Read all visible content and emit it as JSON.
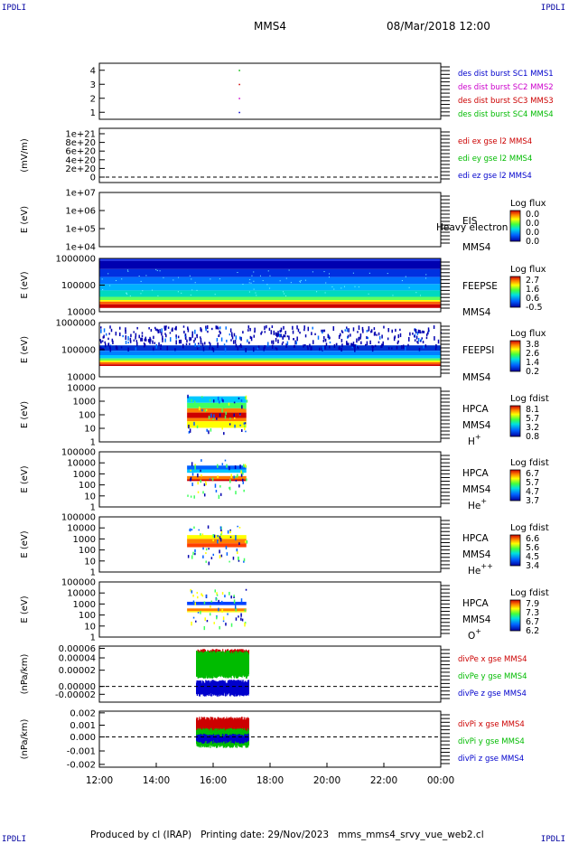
{
  "corner_label": "IPDLI",
  "header": {
    "spacecraft": "MMS4",
    "datetime": "08/Mar/2018 12:00"
  },
  "footer": {
    "produced_by": "Produced by cl (IRAP)",
    "printing_date": "Printing date: 29/Nov/2023",
    "script_name": "mms_mms4_srvy_vue_web2.cl"
  },
  "chart_data": [
    {
      "id": "burst",
      "type": "scatter",
      "title": "",
      "ylabel": "",
      "ylim": [
        0.5,
        4.5
      ],
      "yticks": [
        "1",
        "2",
        "3",
        "4"
      ],
      "legend": [
        {
          "text": "des dist burst SC1 MMS1",
          "color": "#0000cc"
        },
        {
          "text": "des dist burst SC2 MMS2",
          "color": "#cc00cc"
        },
        {
          "text": "des dist burst SC3 MMS3",
          "color": "#cc0000"
        },
        {
          "text": "des dist burst SC4 MMS4",
          "color": "#00bb00"
        }
      ],
      "series": [
        {
          "name": "des dist burst SC1 MMS1",
          "x": [
            "16:55"
          ],
          "y": [
            1
          ]
        },
        {
          "name": "des dist burst SC2 MMS2",
          "x": [
            "16:55"
          ],
          "y": [
            2
          ]
        },
        {
          "name": "des dist burst SC3 MMS3",
          "x": [
            "16:55"
          ],
          "y": [
            3
          ]
        },
        {
          "name": "des dist burst SC4 MMS4",
          "x": [
            "16:55"
          ],
          "y": [
            4
          ]
        }
      ]
    },
    {
      "id": "edi",
      "type": "line",
      "ylabel": "(mV/m)",
      "yticks": [
        "0",
        "2e+20",
        "4e+20",
        "6e+20",
        "8e+20",
        "1e+21"
      ],
      "zero_line": true,
      "legend": [
        {
          "text": "edi ex gse l2 MMS4",
          "color": "#cc0000"
        },
        {
          "text": "edi ey gse l2 MMS4",
          "color": "#00bb00"
        },
        {
          "text": "edi ez gse l2 MMS4",
          "color": "#0000cc"
        }
      ]
    },
    {
      "id": "eis",
      "type": "heatmap",
      "ylabel": "E (eV)",
      "yticks": [
        "1e+04",
        "1e+05",
        "1e+06",
        "1e+07"
      ],
      "instrument": "EIS",
      "sc": "MMS4",
      "overlay": "Heavy electron to",
      "cbar_title": "Log flux",
      "cbar_ticks": [
        "0.0",
        "0.0",
        "0.0",
        "0.0"
      ]
    },
    {
      "id": "feepse",
      "type": "heatmap",
      "ylabel": "E (eV)",
      "yticks": [
        "10000",
        "100000",
        "1000000"
      ],
      "instrument": "FEEPSE",
      "sc": "MMS4",
      "cbar_title": "Log flux",
      "cbar_ticks": [
        "2.7",
        "1.6",
        "0.6",
        "-0.5"
      ],
      "x_range": [
        "12:00",
        "00:00"
      ]
    },
    {
      "id": "feepsi",
      "type": "heatmap",
      "ylabel": "E (eV)",
      "yticks": [
        "10000",
        "100000",
        "1000000"
      ],
      "instrument": "FEEPSI",
      "sc": "MMS4",
      "cbar_title": "Log flux",
      "cbar_ticks": [
        "3.8",
        "2.6",
        "1.4",
        "0.2"
      ],
      "x_range": [
        "12:00",
        "00:00"
      ]
    },
    {
      "id": "hpca_h",
      "type": "heatmap",
      "ylabel": "E (eV)",
      "yticks": [
        "1",
        "10",
        "100",
        "1000",
        "10000"
      ],
      "instrument": "HPCA",
      "sc": "MMS4",
      "species": "H",
      "charge": "+",
      "cbar_title": "Log fdist",
      "cbar_ticks": [
        "8.1",
        "5.7",
        "3.2",
        "0.8"
      ],
      "x_range": [
        "15:05",
        "17:10"
      ]
    },
    {
      "id": "hpca_he",
      "type": "heatmap",
      "ylabel": "E (eV)",
      "yticks": [
        "1",
        "10",
        "100",
        "1000",
        "10000",
        "100000"
      ],
      "instrument": "HPCA",
      "sc": "MMS4",
      "species": "He",
      "charge": "+",
      "cbar_title": "Log fdist",
      "cbar_ticks": [
        "6.7",
        "5.7",
        "4.7",
        "3.7"
      ],
      "x_range": [
        "15:05",
        "17:10"
      ]
    },
    {
      "id": "hpca_hepp",
      "type": "heatmap",
      "ylabel": "E (eV)",
      "yticks": [
        "1",
        "10",
        "100",
        "1000",
        "10000",
        "100000"
      ],
      "instrument": "HPCA",
      "sc": "MMS4",
      "species": "He",
      "charge": "++",
      "cbar_title": "Log fdist",
      "cbar_ticks": [
        "6.6",
        "5.6",
        "4.5",
        "3.4"
      ],
      "x_range": [
        "15:05",
        "17:10"
      ]
    },
    {
      "id": "hpca_o",
      "type": "heatmap",
      "ylabel": "E (eV)",
      "yticks": [
        "1",
        "10",
        "100",
        "1000",
        "10000",
        "100000"
      ],
      "instrument": "HPCA",
      "sc": "MMS4",
      "species": "O",
      "charge": "+",
      "cbar_title": "Log fdist",
      "cbar_ticks": [
        "7.9",
        "7.3",
        "6.7",
        "6.2"
      ],
      "x_range": [
        "15:05",
        "17:10"
      ]
    },
    {
      "id": "divpe",
      "type": "line",
      "ylabel": "(nPa/km)",
      "yticks": [
        "-0.00002",
        "0.00000",
        "0.00002",
        "0.00004",
        "0.00006"
      ],
      "zero_line": true,
      "x_range": [
        "15:25",
        "17:15"
      ],
      "legend": [
        {
          "text": "divPe x gse MMS4",
          "color": "#cc0000"
        },
        {
          "text": "divPe y gse MMS4",
          "color": "#00bb00"
        },
        {
          "text": "divPe z gse MMS4",
          "color": "#0000cc"
        }
      ]
    },
    {
      "id": "divpi",
      "type": "line",
      "ylabel": "(nPa/km)",
      "yticks": [
        "-0.002",
        "-0.001",
        "0.000",
        "0.001",
        "0.002"
      ],
      "zero_line": true,
      "x_range": [
        "15:25",
        "17:15"
      ],
      "legend": [
        {
          "text": "divPi x gse MMS4",
          "color": "#cc0000"
        },
        {
          "text": "divPi y gse MMS4",
          "color": "#00bb00"
        },
        {
          "text": "divPi z gse MMS4",
          "color": "#0000cc"
        }
      ]
    }
  ],
  "x_axis": {
    "ticks": [
      "12:00",
      "14:00",
      "16:00",
      "18:00",
      "20:00",
      "22:00",
      "00:00"
    ]
  }
}
